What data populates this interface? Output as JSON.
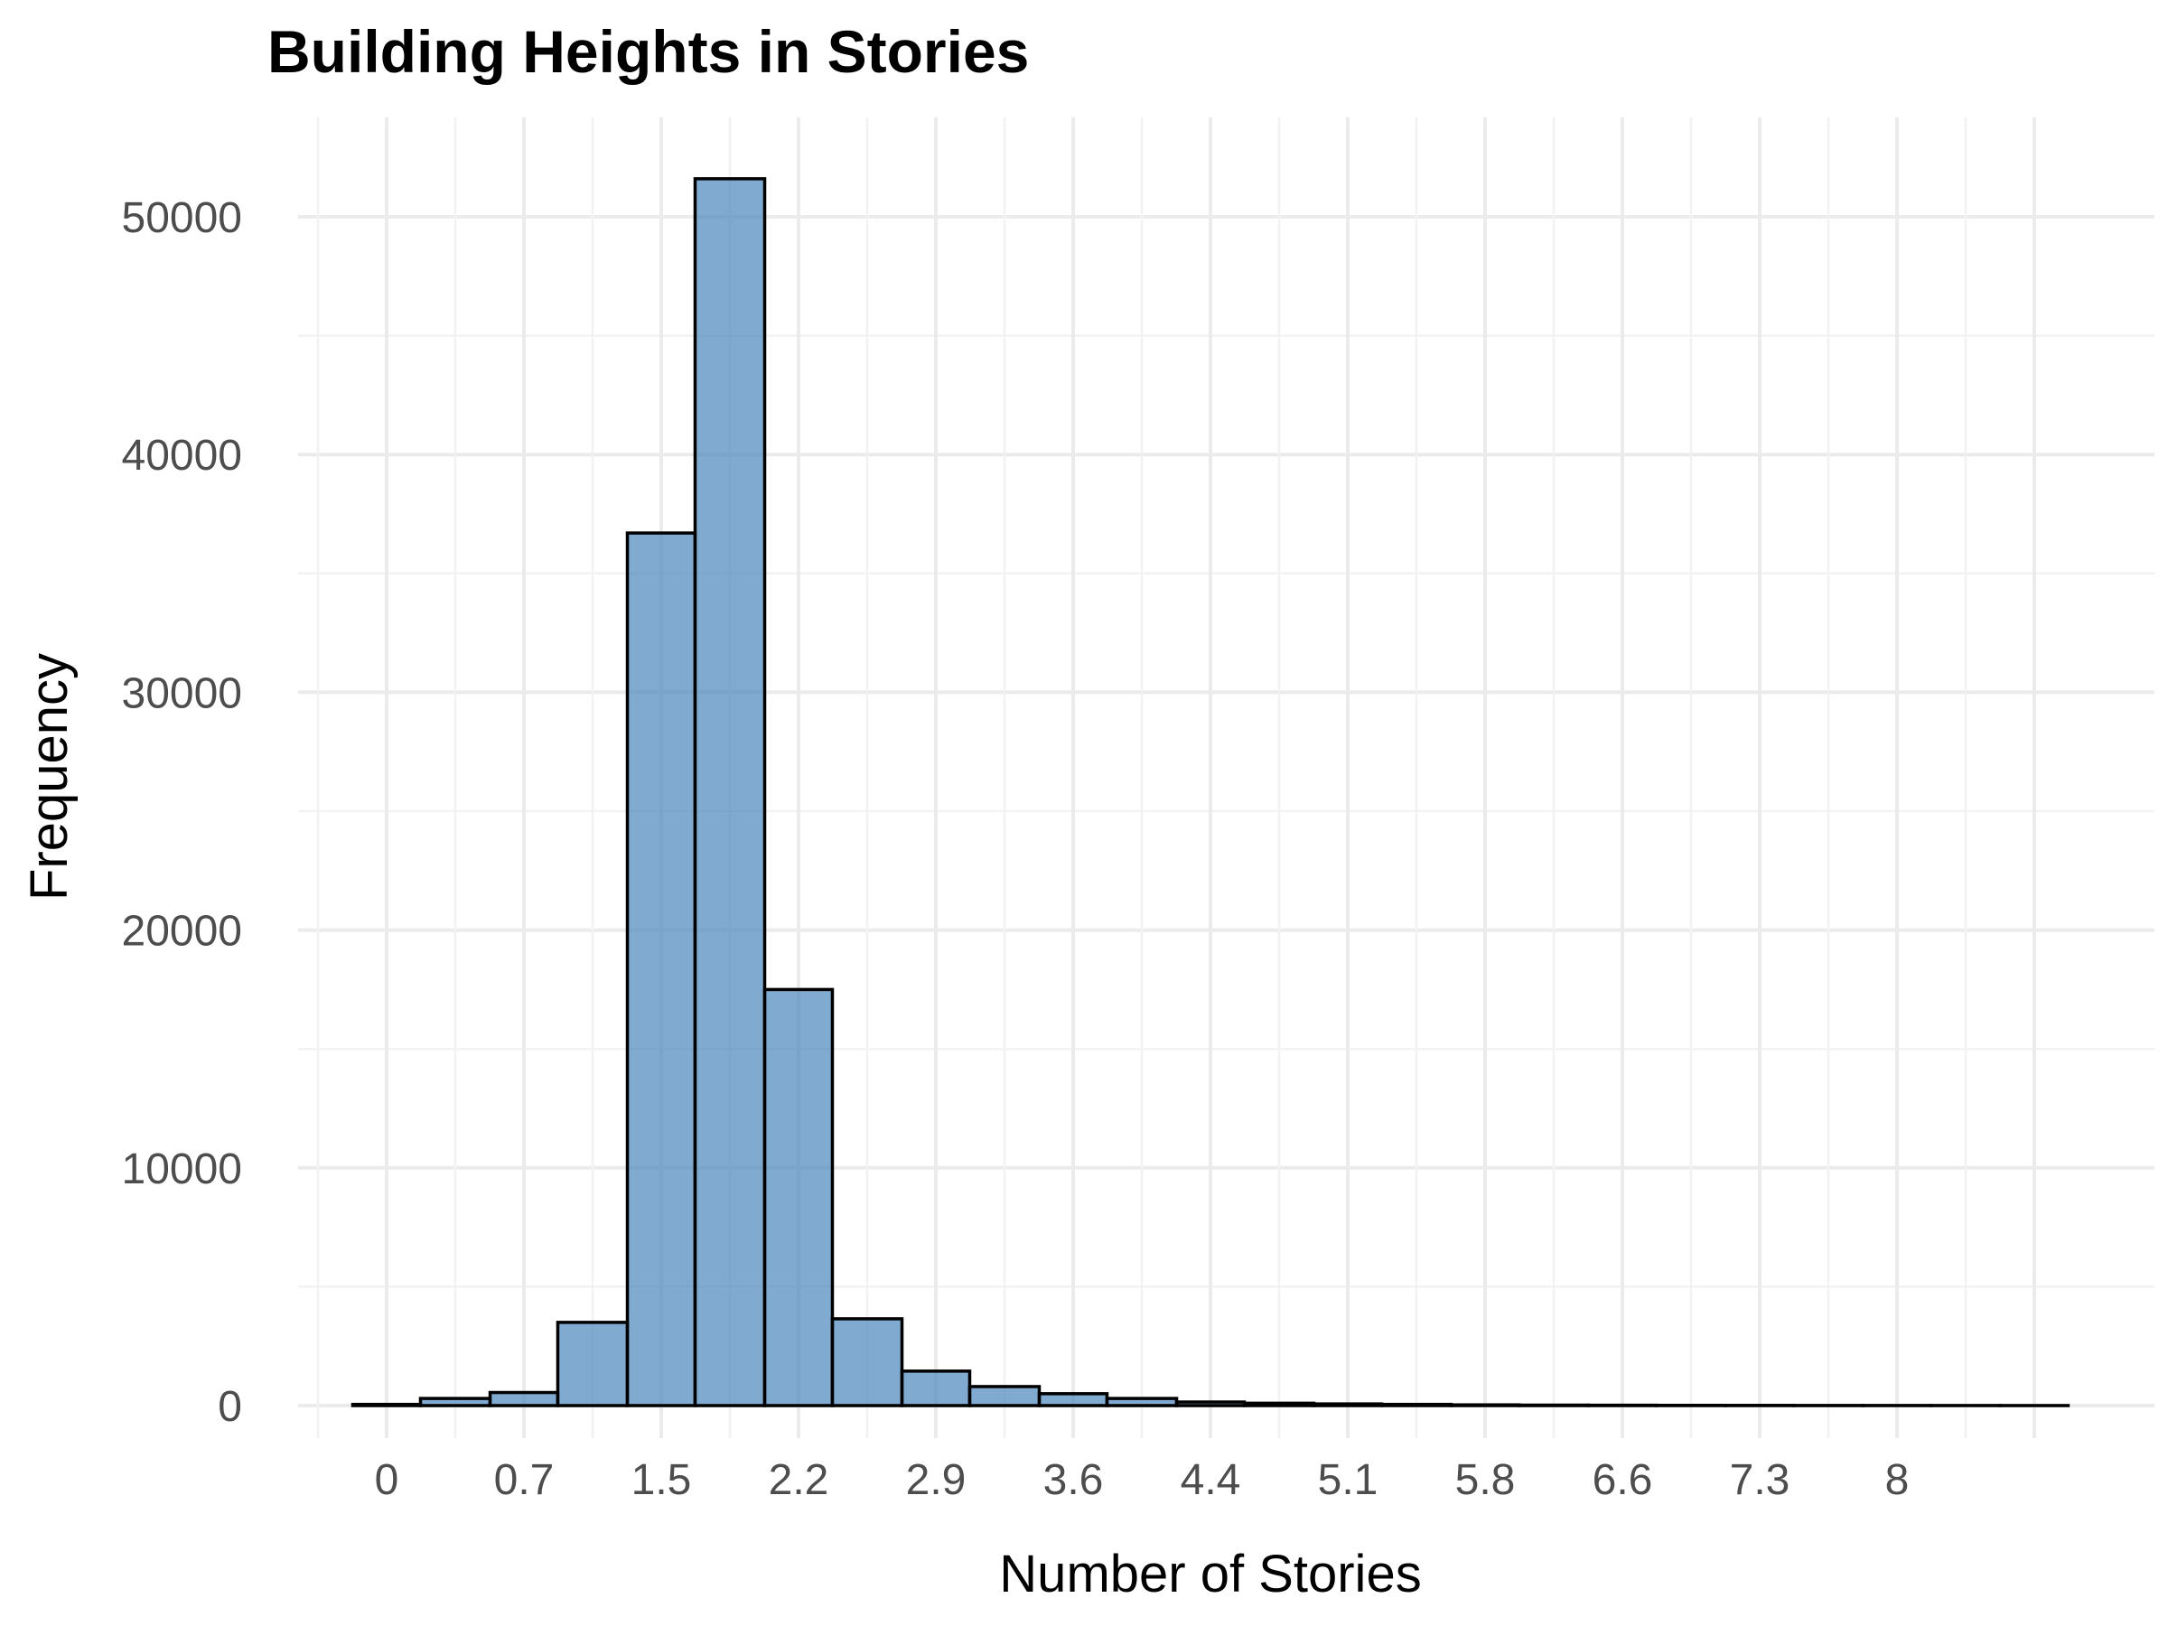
{
  "chart_data": {
    "type": "bar",
    "title": "Building Heights in Stories",
    "xlabel": "Number of Stories",
    "ylabel": "Frequency",
    "ylim": [
      0,
      54000
    ],
    "y_ticks": [
      0,
      10000,
      20000,
      30000,
      40000,
      50000
    ],
    "x_tick_labels": [
      "0",
      "0.7",
      "1.5",
      "2.2",
      "2.9",
      "3.6",
      "4.4",
      "5.1",
      "5.8",
      "6.6",
      "7.3",
      "8"
    ],
    "x_tick_values": [
      0,
      0.73,
      1.46,
      2.19,
      2.92,
      3.65,
      4.38,
      5.11,
      5.84,
      6.57,
      7.3,
      8.03
    ],
    "bin_width": 0.365,
    "bins": [
      {
        "x_start": -0.18,
        "x_end": 0.18,
        "count": 50
      },
      {
        "x_start": 0.18,
        "x_end": 0.55,
        "count": 300
      },
      {
        "x_start": 0.55,
        "x_end": 0.91,
        "count": 550
      },
      {
        "x_start": 0.91,
        "x_end": 1.28,
        "count": 3500
      },
      {
        "x_start": 1.28,
        "x_end": 1.64,
        "count": 36700
      },
      {
        "x_start": 1.64,
        "x_end": 2.01,
        "count": 51600
      },
      {
        "x_start": 2.01,
        "x_end": 2.37,
        "count": 17500
      },
      {
        "x_start": 2.37,
        "x_end": 2.74,
        "count": 3650
      },
      {
        "x_start": 2.74,
        "x_end": 3.1,
        "count": 1450
      },
      {
        "x_start": 3.1,
        "x_end": 3.47,
        "count": 800
      },
      {
        "x_start": 3.47,
        "x_end": 3.83,
        "count": 500
      },
      {
        "x_start": 3.83,
        "x_end": 4.2,
        "count": 300
      },
      {
        "x_start": 4.2,
        "x_end": 4.56,
        "count": 150
      },
      {
        "x_start": 4.56,
        "x_end": 4.93,
        "count": 100
      },
      {
        "x_start": 4.93,
        "x_end": 5.29,
        "count": 70
      },
      {
        "x_start": 5.29,
        "x_end": 5.66,
        "count": 50
      },
      {
        "x_start": 5.66,
        "x_end": 6.02,
        "count": 30
      },
      {
        "x_start": 6.02,
        "x_end": 6.39,
        "count": 20
      },
      {
        "x_start": 6.39,
        "x_end": 6.75,
        "count": 15
      },
      {
        "x_start": 6.75,
        "x_end": 7.12,
        "count": 10
      },
      {
        "x_start": 7.12,
        "x_end": 7.48,
        "count": 8
      },
      {
        "x_start": 7.48,
        "x_end": 7.85,
        "count": 5
      },
      {
        "x_start": 7.85,
        "x_end": 8.21,
        "count": 4
      },
      {
        "x_start": 8.21,
        "x_end": 8.58,
        "count": 3
      },
      {
        "x_start": 8.58,
        "x_end": 8.94,
        "count": 2
      }
    ],
    "bar_fill": "#4a86bc",
    "bar_fill_opacity": 0.7,
    "bar_stroke": "#000000",
    "grid": true,
    "legend": "none"
  }
}
